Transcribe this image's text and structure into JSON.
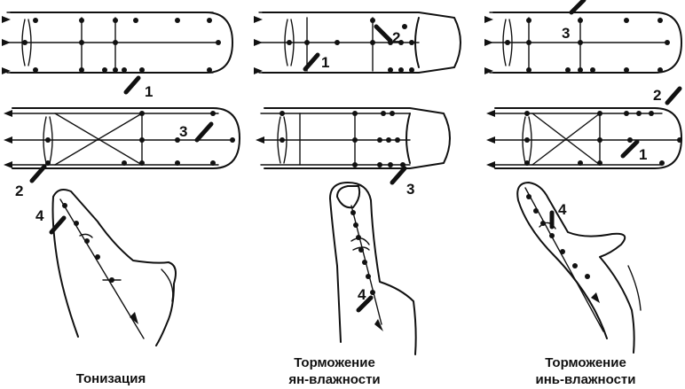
{
  "captions": [
    {
      "line1": "Тонизация",
      "line2": ""
    },
    {
      "line1": "Торможение",
      "line2": "ян-влажности"
    },
    {
      "line1": "Торможение",
      "line2": "инь-влажности"
    }
  ],
  "needle_numbers": {
    "col1": {
      "top": "1",
      "mid_left": "2",
      "mid_right": "3",
      "finger": "4"
    },
    "col2": {
      "top_a": "1",
      "top_b": "2",
      "mid": "3",
      "finger": "4"
    },
    "col3": {
      "top": "3",
      "mid_a": "2",
      "mid_b": "1",
      "finger": "4"
    }
  }
}
